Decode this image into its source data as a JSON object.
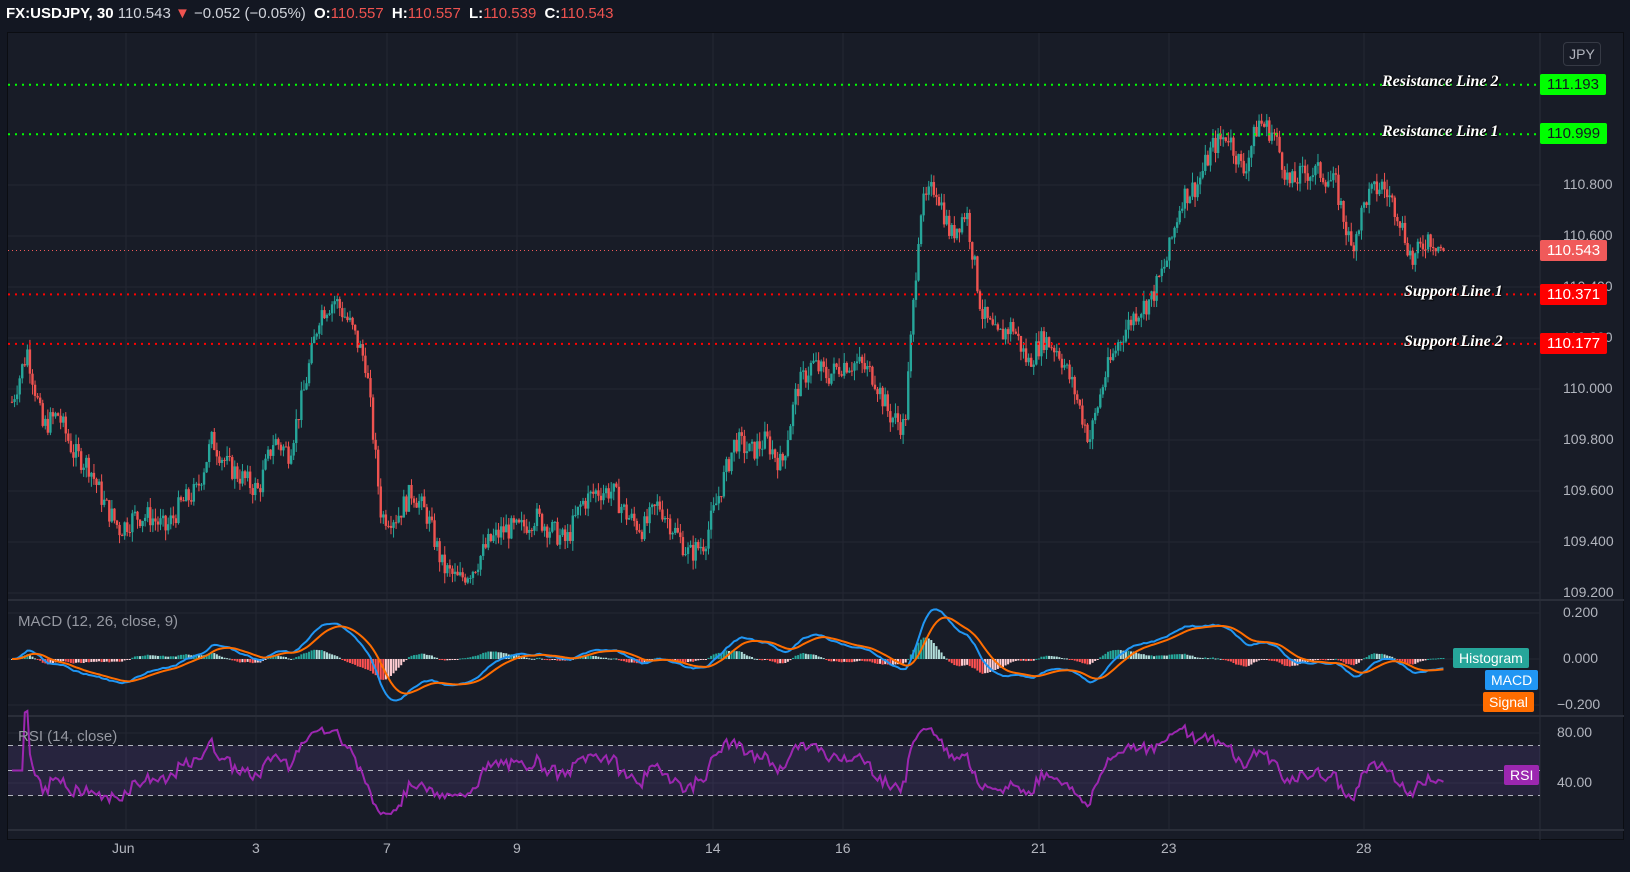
{
  "header": {
    "symbol": "FX:USDJPY, 30",
    "last": "110.543",
    "change_arrow": "▼",
    "change": "−0.052 (−0.05%)",
    "o_label": "O:",
    "o": "110.557",
    "h_label": "H:",
    "h": "110.557",
    "l_label": "L:",
    "l": "110.539",
    "c_label": "C:",
    "c": "110.543"
  },
  "currency_button": "JPY",
  "colors": {
    "bull": "#26a69a",
    "bear": "#ef5350",
    "resistance": "#00ff00",
    "support": "#ff0000",
    "last_price": "#f05a5a",
    "macd": "#2196f3",
    "signal": "#ff6d00",
    "histogram": "#26a69a",
    "rsi": "#9c27b0"
  },
  "price_axis": {
    "ticks": [
      "110.800",
      "110.600",
      "110.400",
      "110.200",
      "110.000",
      "109.800",
      "109.600",
      "109.400",
      "109.200"
    ]
  },
  "levels": [
    {
      "name": "Resistance Line 2",
      "value": "111.193",
      "type": "resistance"
    },
    {
      "name": "Resistance Line 1",
      "value": "110.999",
      "type": "resistance"
    },
    {
      "name": "Support Line 1",
      "value": "110.371",
      "type": "support"
    },
    {
      "name": "Support Line 2",
      "value": "110.177",
      "type": "support"
    }
  ],
  "last_price_tag": "110.543",
  "macd_pane": {
    "title": "MACD (12, 26, close, 9)",
    "ticks": [
      "0.200",
      "0.000",
      "−0.200"
    ],
    "legend": [
      "Histogram",
      "MACD",
      "Signal"
    ]
  },
  "rsi_pane": {
    "title": "RSI (14, close)",
    "ticks": [
      "80.00",
      "40.00"
    ],
    "legend": "RSI"
  },
  "time_axis": {
    "labels": [
      "Jun",
      "3",
      "7",
      "9",
      "14",
      "16",
      "21",
      "23",
      "28"
    ]
  },
  "chart_data": {
    "type": "candlestick",
    "title": "FX:USDJPY, 30",
    "xlabel": "",
    "ylabel": "JPY",
    "ylim": [
      109.15,
      111.3
    ],
    "grid": true,
    "x_tick_labels": [
      "Jun",
      "3",
      "7",
      "9",
      "14",
      "16",
      "21",
      "23",
      "28"
    ],
    "close_path": [
      109.95,
      110.15,
      109.85,
      109.9,
      109.75,
      109.7,
      109.55,
      109.45,
      109.5,
      109.5,
      109.45,
      109.55,
      109.6,
      109.8,
      109.7,
      109.65,
      109.6,
      109.8,
      109.75,
      110.0,
      110.3,
      110.35,
      110.25,
      110.1,
      109.5,
      109.5,
      109.6,
      109.5,
      109.3,
      109.25,
      109.3,
      109.4,
      109.45,
      109.45,
      109.5,
      109.45,
      109.4,
      109.55,
      109.6,
      109.6,
      109.5,
      109.45,
      109.55,
      109.45,
      109.35,
      109.4,
      109.6,
      109.8,
      109.75,
      109.8,
      109.7,
      110.0,
      110.1,
      110.05,
      110.1,
      110.1,
      110.05,
      109.9,
      109.85,
      110.7,
      110.8,
      110.6,
      110.7,
      110.3,
      110.2,
      110.25,
      110.1,
      110.2,
      110.15,
      110.0,
      109.8,
      110.05,
      110.2,
      110.3,
      110.35,
      110.5,
      110.75,
      110.8,
      110.95,
      111.0,
      110.85,
      111.05,
      111.0,
      110.8,
      110.85,
      110.85,
      110.8,
      110.55,
      110.75,
      110.8,
      110.7,
      110.5,
      110.6,
      110.543
    ],
    "levels": {
      "Resistance Line 2": 111.193,
      "Resistance Line 1": 110.999,
      "Support Line 1": 110.371,
      "Support Line 2": 110.177
    },
    "last": 110.543,
    "macd_ylim": [
      -0.25,
      0.25
    ],
    "rsi_ylim": [
      20,
      90
    ],
    "rsi_bands": [
      30,
      50,
      70
    ]
  }
}
